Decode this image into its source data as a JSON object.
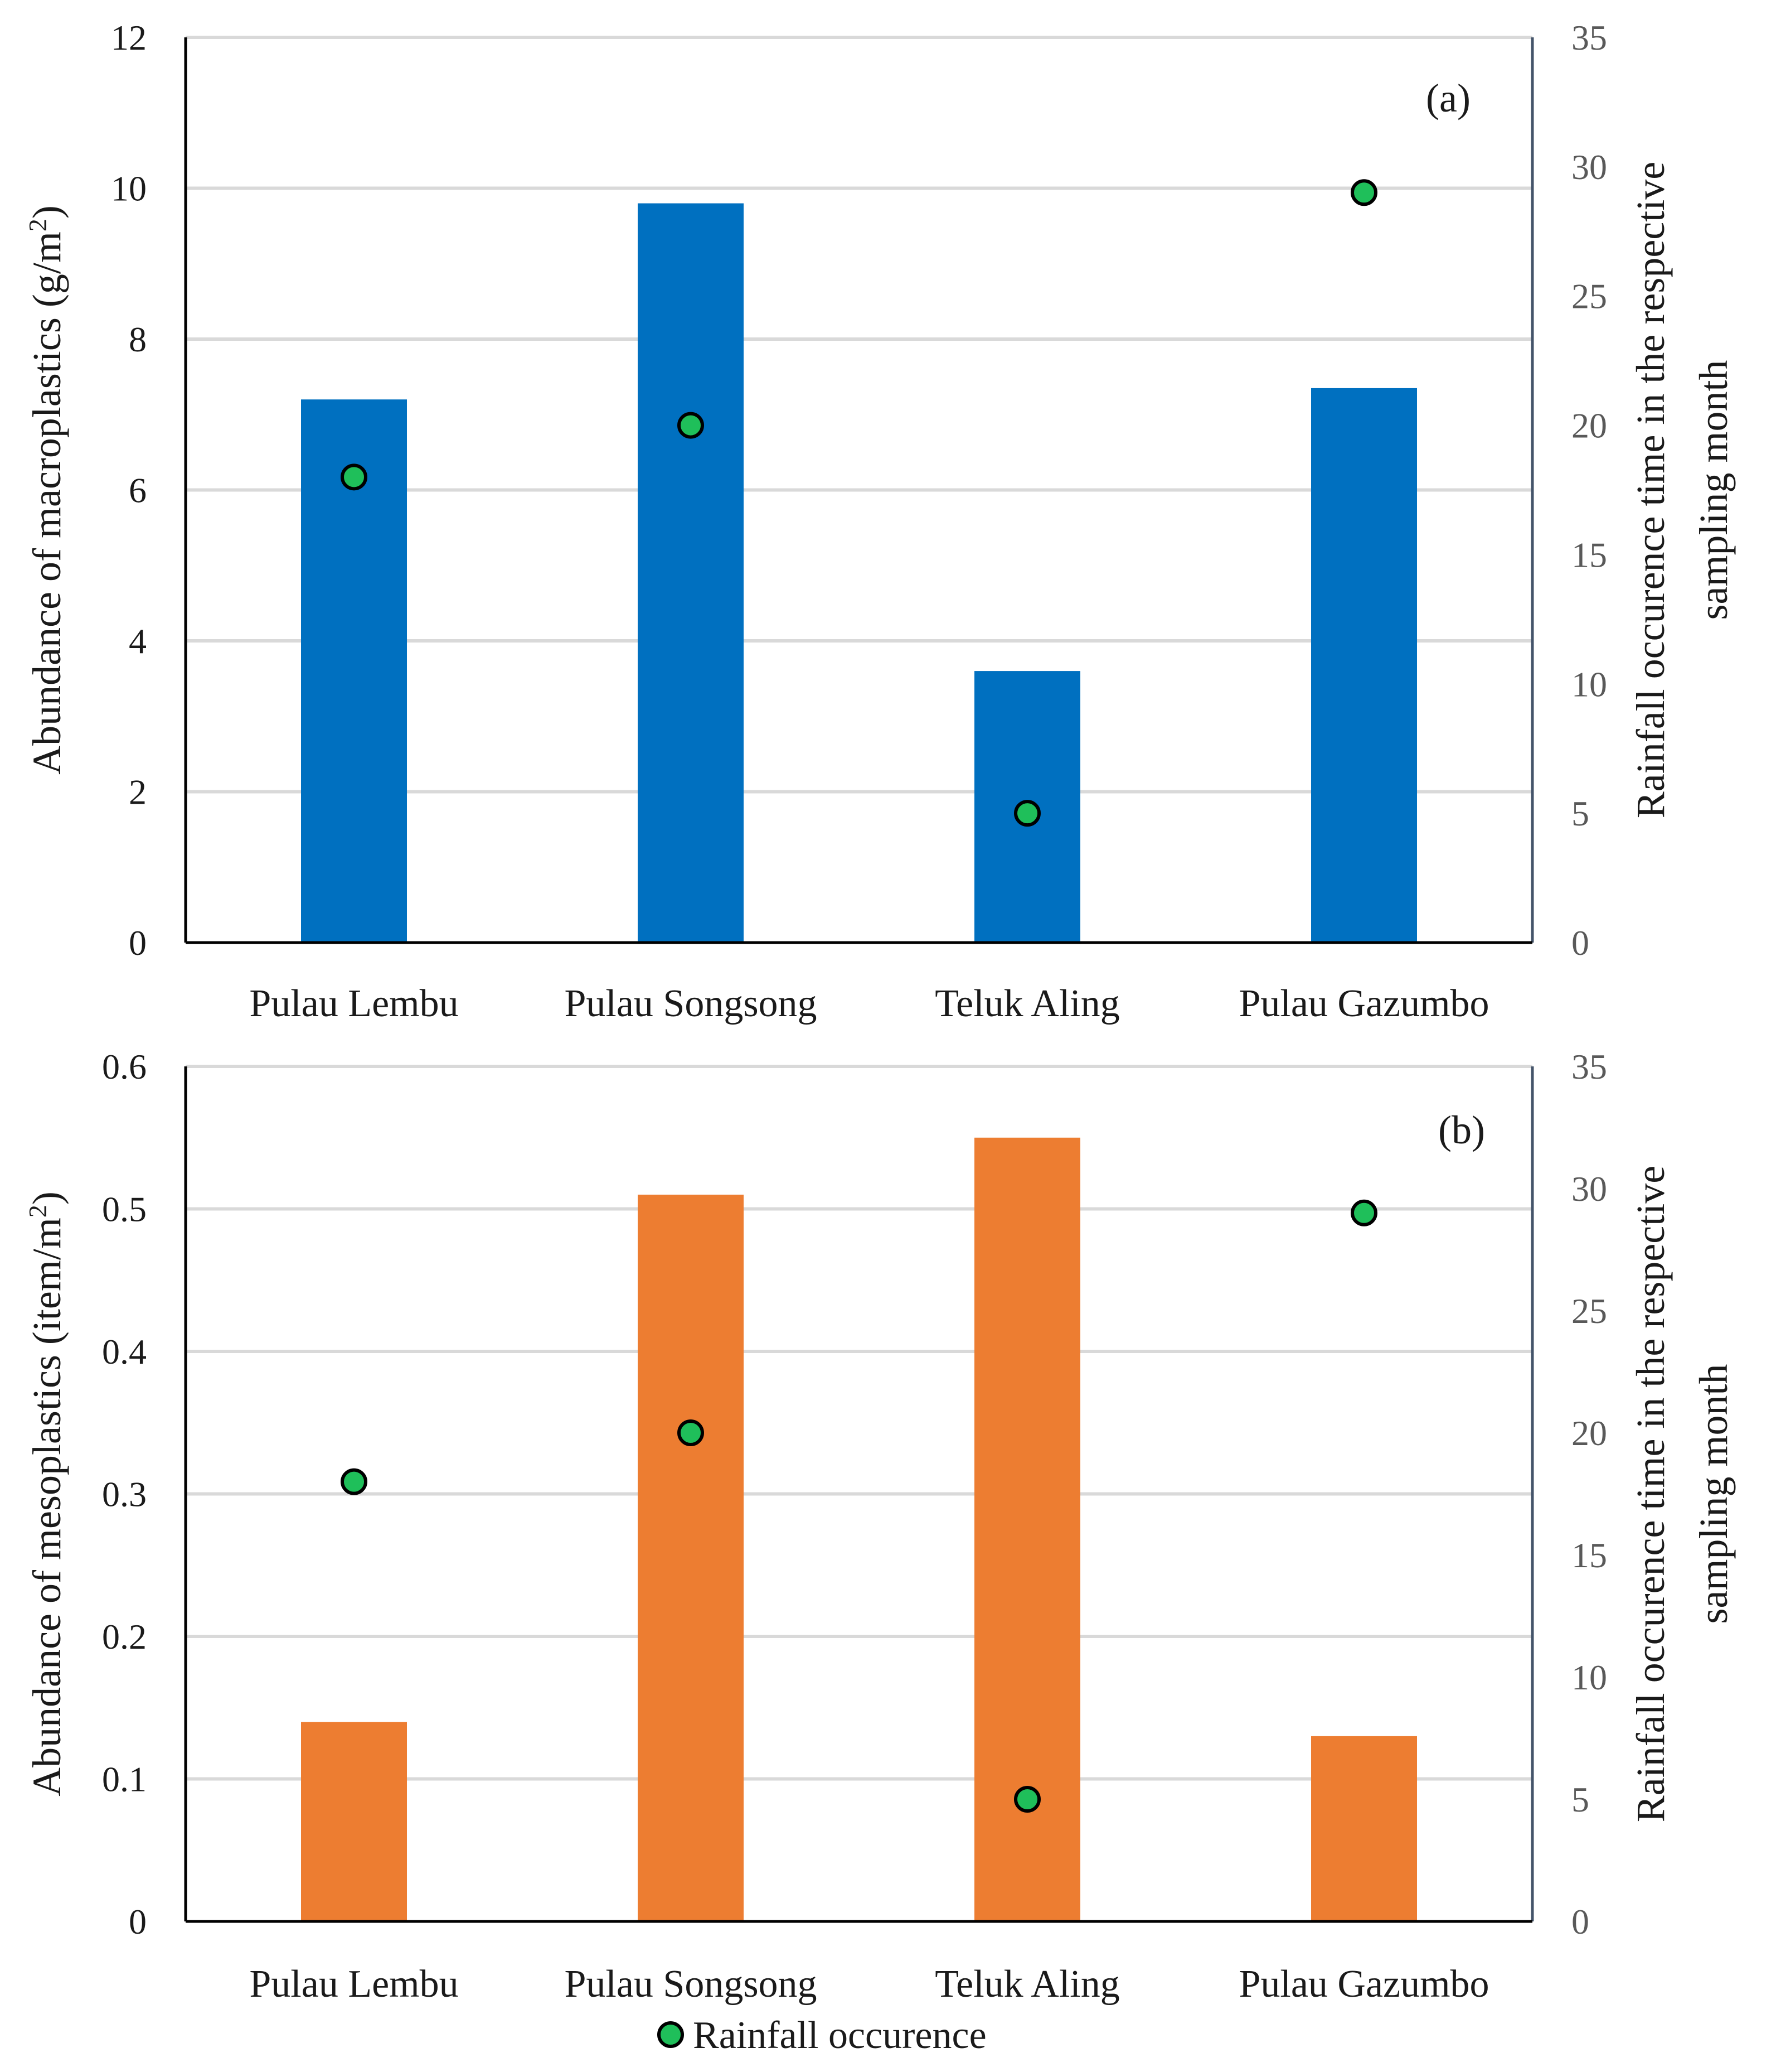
{
  "chart_data": [
    {
      "type": "bar",
      "panel_label": "(a)",
      "categories": [
        "Pulau Lembu",
        "Pulau Songsong",
        "Teluk Aling",
        "Pulau Gazumbo"
      ],
      "series": [
        {
          "name": "Abundance of macroplastics",
          "type": "bar",
          "axis": "left",
          "values": [
            7.2,
            9.8,
            3.6,
            7.35
          ],
          "color": "#0070c0"
        },
        {
          "name": "Rainfall occurence",
          "type": "scatter",
          "axis": "right",
          "values": [
            18,
            20,
            5,
            29
          ],
          "color": "#1fbf5a"
        }
      ],
      "ylabel_pre": "Abundance  of macroplastics (g/m",
      "ylabel_sup": "2",
      "ylabel_post": ")",
      "ylim": [
        0,
        12
      ],
      "yticks": [
        "0",
        "2",
        "4",
        "6",
        "8",
        "10",
        "12"
      ],
      "y2label_line1": "Rainfall occurence time in the respective",
      "y2label_line2": "sampling month",
      "y2lim": [
        0,
        35
      ],
      "y2ticks": [
        "0",
        "5",
        "10",
        "15",
        "20",
        "25",
        "30",
        "35"
      ],
      "grid": true
    },
    {
      "type": "bar",
      "panel_label": "(b)",
      "categories": [
        "Pulau Lembu",
        "Pulau Songsong",
        "Teluk Aling",
        "Pulau Gazumbo"
      ],
      "series": [
        {
          "name": "Abundance of mesoplastics",
          "type": "bar",
          "axis": "left",
          "values": [
            0.14,
            0.51,
            0.55,
            0.13
          ],
          "color": "#ed7d31"
        },
        {
          "name": "Rainfall occurence",
          "type": "scatter",
          "axis": "right",
          "values": [
            18,
            20,
            5,
            29
          ],
          "color": "#1fbf5a"
        }
      ],
      "ylabel_pre": "Abundance  of mesoplastics (item/m",
      "ylabel_sup": "2",
      "ylabel_post": ")",
      "ylim": [
        0,
        0.6
      ],
      "yticks": [
        "0",
        "0.1",
        "0.2",
        "0.3",
        "0.4",
        "0.5",
        "0.6"
      ],
      "y2label_line1": "Rainfall occurence time in the respective",
      "y2label_line2": "sampling month",
      "y2lim": [
        0,
        35
      ],
      "y2ticks": [
        "0",
        "5",
        "10",
        "15",
        "20",
        "25",
        "30",
        "35"
      ],
      "grid": true
    }
  ],
  "legend": {
    "label": "Rainfall occurence",
    "position": "bottom-center"
  }
}
